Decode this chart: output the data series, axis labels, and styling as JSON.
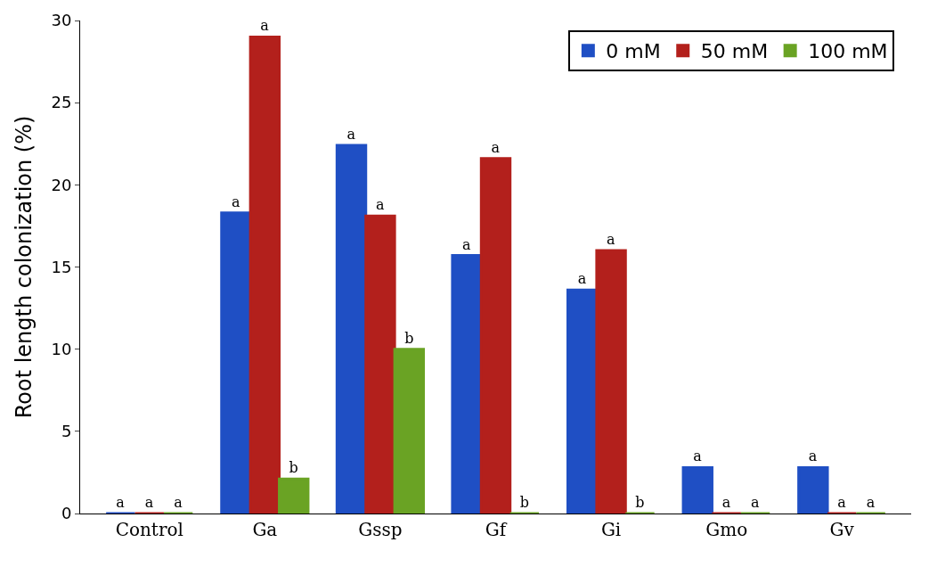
{
  "chart_data": {
    "type": "bar",
    "ylabel": "Root length colonization (%)",
    "categories": [
      "Control",
      "Ga",
      "Gssp",
      "Gf",
      "Gi",
      "Gmo",
      "Gv"
    ],
    "series": [
      {
        "name": "0 mM",
        "color": "#1f4fc4",
        "values": [
          0,
          18.3,
          22.4,
          15.7,
          13.6,
          2.8,
          2.8
        ],
        "value_labels": [
          "a",
          "a",
          "a",
          "a",
          "a",
          "a",
          "a"
        ]
      },
      {
        "name": "50 mM",
        "color": "#b3201c",
        "values": [
          0,
          29,
          18.1,
          21.6,
          16,
          0,
          0
        ],
        "value_labels": [
          "a",
          "a",
          "a",
          "a",
          "a",
          "a",
          "a"
        ]
      },
      {
        "name": "100 mM",
        "color": "#6aa324",
        "values": [
          0,
          2.1,
          10,
          0,
          0,
          0,
          0
        ],
        "value_labels": [
          "a",
          "b",
          "b",
          "b",
          "b",
          "a",
          "a"
        ]
      }
    ],
    "ylim": [
      0,
      30
    ],
    "yticks": [
      0,
      5,
      10,
      15,
      20,
      25,
      30
    ],
    "legend": "top right"
  }
}
